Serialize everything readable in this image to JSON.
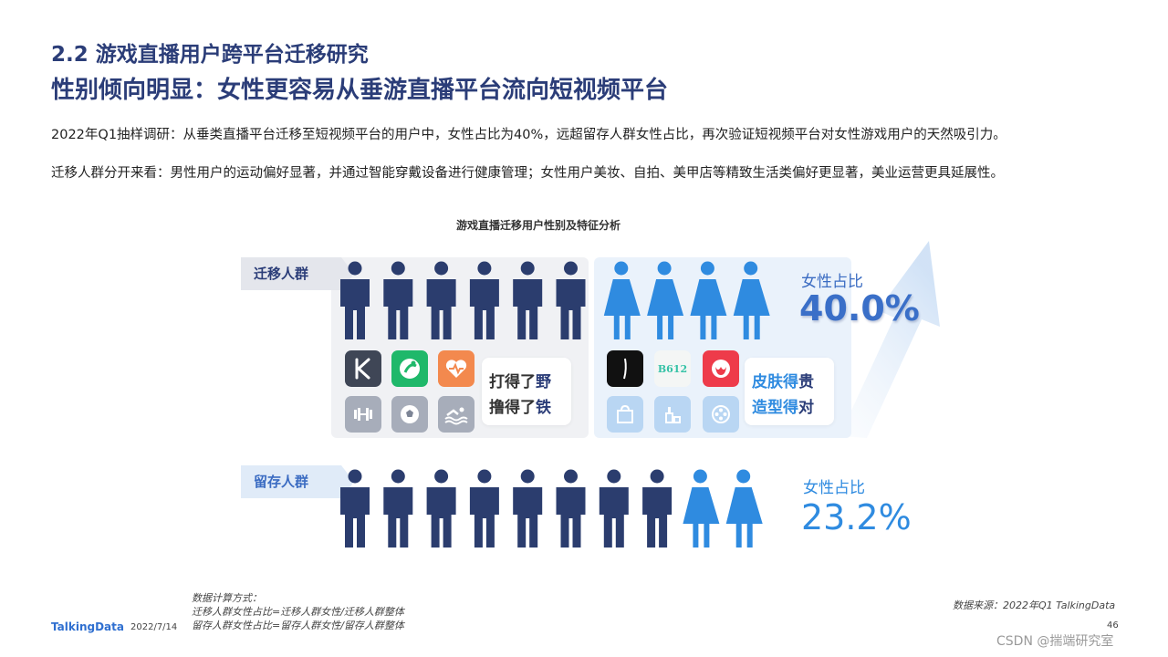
{
  "header": {
    "title_line1": "2.2 游戏直播用户跨平台迁移研究",
    "title_line2": "性别倾向明显：女性更容易从垂游直播平台流向短视频平台"
  },
  "body": {
    "paragraph1": "2022年Q1抽样调研：从垂类直播平台迁移至短视频平台的用户中，女性占比为40%，远超留存人群女性占比，再次验证短视频平台对女性游戏用户的天然吸引力。",
    "paragraph2": "迁移人群分开来看：男性用户的运动偏好显著，并通过智能穿戴设备进行健康管理；女性用户美妆、自拍、美甲店等精致生活类偏好更显著，美业运营更具延展性。"
  },
  "chart_data": {
    "type": "pictograph",
    "title": "游戏直播迁移用户性别及特征分析",
    "groups": [
      {
        "name": "迁移人群",
        "male_icons": 6,
        "female_icons": 4,
        "female_share_label": "女性占比",
        "female_share": 40.0,
        "female_share_text": "40.0%"
      },
      {
        "name": "留存人群",
        "male_icons": 8,
        "female_icons": 2,
        "female_share_label": "女性占比",
        "female_share": 23.2,
        "female_share_text": "23.2%"
      }
    ],
    "colors": {
      "male": "#2b3d6e",
      "female": "#2f8be0",
      "accent": "#3b6cc2"
    }
  },
  "features": {
    "male": {
      "apps": [
        "keep-app-icon",
        "exercise-app-icon",
        "health-app-icon"
      ],
      "categories": [
        "dumbbell-icon",
        "football-icon",
        "swimming-icon"
      ],
      "slogan_line1_pre": "打得了",
      "slogan_line1_bold": "野",
      "slogan_line2_pre": "撸得了",
      "slogan_line2_bold": "铁"
    },
    "female": {
      "apps": [
        "dewu-app-icon",
        "b612-app-icon",
        "meitu-app-icon"
      ],
      "app_text_b612": "B612",
      "categories": [
        "shopping-bag-icon",
        "cosmetics-icon",
        "film-reel-icon"
      ],
      "slogan_line1_pre": "皮肤得",
      "slogan_line1_bold": "贵",
      "slogan_line2_pre": "造型得",
      "slogan_line2_bold": "对"
    }
  },
  "footer": {
    "calc_title": "数据计算方式：",
    "calc_line1": "迁移人群女性占比=迁移人群女性/迁移人群整体",
    "calc_line2": "留存人群女性占比=留存人群女性/留存人群整体",
    "source": "数据来源：2022年Q1 TalkingData",
    "logo": "TalkingData",
    "date": "2022/7/14",
    "page_number": "46",
    "watermark": "CSDN @揣端研究室"
  }
}
